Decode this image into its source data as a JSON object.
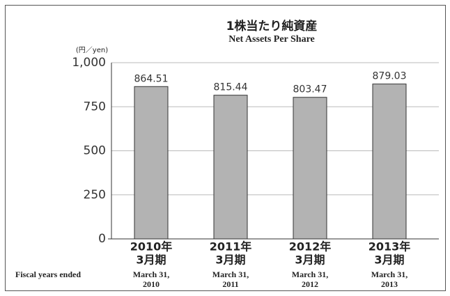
{
  "chart_data": {
    "type": "bar",
    "title": "1株当たり純資産",
    "subtitle": "Net Assets Per Share",
    "y_unit": "(円／yen)",
    "x_label": "Fiscal years ended",
    "categories": [
      [
        "2010年",
        "3月期"
      ],
      [
        "2011年",
        "3月期"
      ],
      [
        "2012年",
        "3月期"
      ],
      [
        "2013年",
        "3月期"
      ]
    ],
    "categories_en": [
      [
        "March 31,",
        "2010"
      ],
      [
        "March 31,",
        "2011"
      ],
      [
        "March 31,",
        "2012"
      ],
      [
        "March 31,",
        "2013"
      ]
    ],
    "values": [
      864.51,
      815.44,
      803.47,
      879.03
    ],
    "color": "#b3b3b3",
    "ylim": [
      0,
      1000
    ],
    "yticks": [
      0,
      250,
      500,
      750,
      {
        "value": 1000,
        "label": "1,000"
      }
    ],
    "grid": true
  }
}
